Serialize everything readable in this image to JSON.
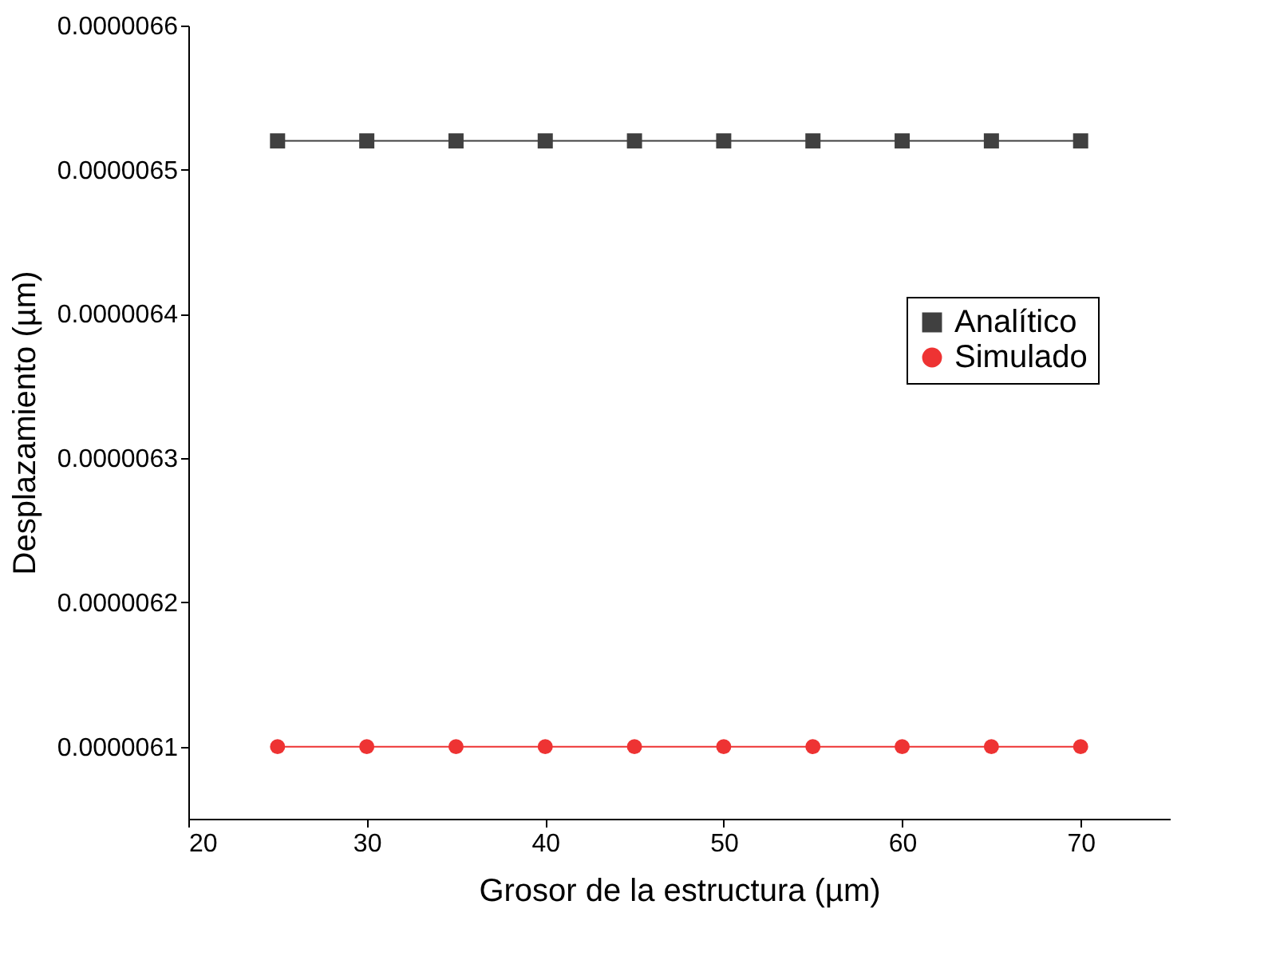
{
  "chart_data": {
    "type": "line",
    "xlabel": "Grosor de la estructura (µm)",
    "ylabel": "Desplazamiento (µm)",
    "x": [
      25,
      30,
      35,
      40,
      45,
      50,
      55,
      60,
      65,
      70
    ],
    "series": [
      {
        "name": "Analítico",
        "color": "#404040",
        "marker": "square",
        "values": [
          6.52e-06,
          6.52e-06,
          6.52e-06,
          6.52e-06,
          6.52e-06,
          6.52e-06,
          6.52e-06,
          6.52e-06,
          6.52e-06,
          6.52e-06
        ]
      },
      {
        "name": "Simulado",
        "color": "#ee3333",
        "marker": "circle",
        "values": [
          6.1e-06,
          6.1e-06,
          6.1e-06,
          6.1e-06,
          6.1e-06,
          6.1e-06,
          6.1e-06,
          6.1e-06,
          6.1e-06,
          6.1e-06
        ]
      }
    ],
    "xlim": [
      20,
      75
    ],
    "xticks": [
      20,
      30,
      40,
      50,
      60,
      70
    ],
    "ylim": [
      6.05e-06,
      6.6e-06
    ],
    "yticks": [
      {
        "value": 6.1e-06,
        "label": "0.0000061"
      },
      {
        "value": 6.2e-06,
        "label": "0.0000062"
      },
      {
        "value": 6.3e-06,
        "label": "0.0000063"
      },
      {
        "value": 6.4e-06,
        "label": "0.0000064"
      },
      {
        "value": 6.5e-06,
        "label": "0.0000065"
      },
      {
        "value": 6.6e-06,
        "label": "0.0000066"
      }
    ],
    "grid": false,
    "legend": "right"
  }
}
